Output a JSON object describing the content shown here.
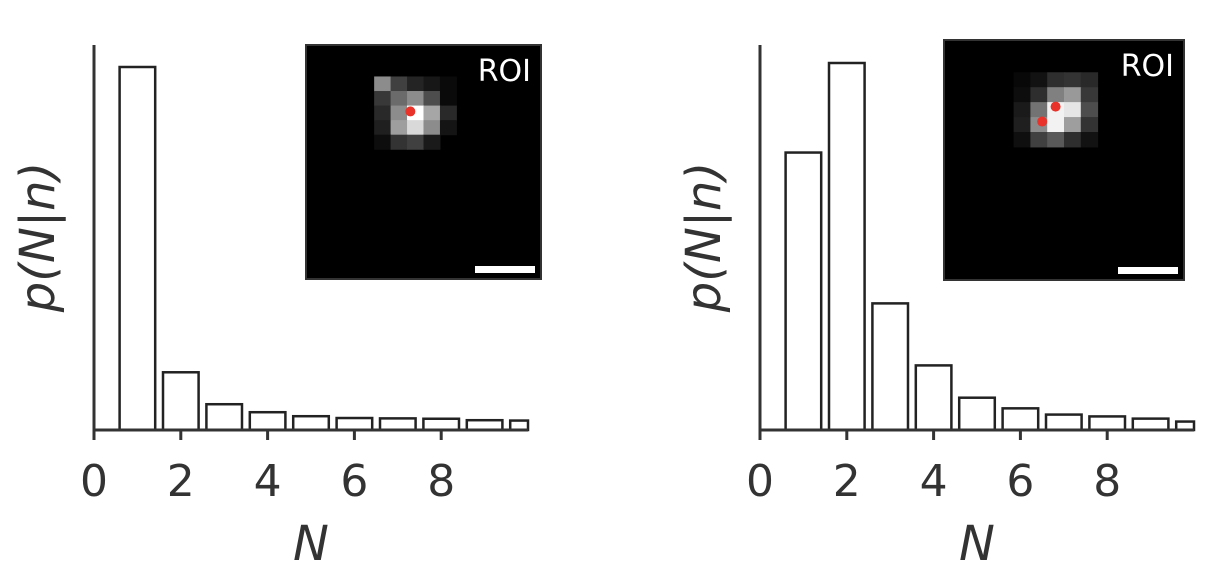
{
  "chart_data": [
    {
      "type": "bar",
      "xlabel": "N",
      "ylabel": "p(N|n)",
      "xlim": [
        0,
        10
      ],
      "xticks": [
        "0",
        "2",
        "4",
        "6",
        "8"
      ],
      "x": [
        1,
        2,
        3,
        4,
        5,
        6,
        7,
        8,
        9,
        10
      ],
      "values": [
        1.0,
        0.159,
        0.071,
        0.049,
        0.038,
        0.033,
        0.032,
        0.031,
        0.027,
        0.026
      ],
      "ylim": [
        0,
        1.05
      ],
      "inset": {
        "label": "ROI",
        "grid": [
          [
            0.0,
            0.0,
            0.0,
            0.0,
            0.0,
            0.0,
            0.0,
            0.0
          ],
          [
            0.0,
            0.0,
            0.0,
            0.0,
            0.0,
            0.0,
            0.0,
            0.0
          ],
          [
            0.0,
            0.55,
            0.25,
            0.14,
            0.09,
            0.04,
            0.0,
            0.0
          ],
          [
            0.0,
            0.22,
            0.42,
            0.55,
            0.3,
            0.04,
            0.0,
            0.0
          ],
          [
            0.0,
            0.16,
            0.55,
            1.0,
            0.65,
            0.16,
            0.0,
            0.0
          ],
          [
            0.0,
            0.12,
            0.62,
            0.85,
            0.55,
            0.08,
            0.0,
            0.0
          ],
          [
            0.0,
            0.05,
            0.2,
            0.25,
            0.1,
            0.0,
            0.0,
            0.0
          ],
          [
            0.0,
            0.0,
            0.0,
            0.0,
            0.0,
            0.0,
            0.0,
            0.0
          ],
          [
            0.0,
            0.0,
            0.0,
            0.0,
            0.0,
            0.0,
            0.0,
            0.0
          ]
        ],
        "dots": [
          [
            3.2,
            4.4
          ]
        ]
      }
    },
    {
      "type": "bar",
      "xlabel": "N",
      "ylabel": "p(N|n)",
      "xlim": [
        0,
        10
      ],
      "xticks": [
        "0",
        "2",
        "4",
        "6",
        "8"
      ],
      "x": [
        1,
        2,
        3,
        4,
        5,
        6,
        7,
        8,
        9,
        10
      ],
      "values": [
        0.756,
        1.0,
        0.345,
        0.176,
        0.088,
        0.059,
        0.042,
        0.037,
        0.031,
        0.023
      ],
      "ylim": [
        0,
        1.05
      ],
      "inset": {
        "label": "ROI",
        "grid": [
          [
            0.0,
            0.0,
            0.0,
            0.0,
            0.0,
            0.0,
            0.0,
            0.0
          ],
          [
            0.0,
            0.0,
            0.0,
            0.0,
            0.0,
            0.0,
            0.0,
            0.0
          ],
          [
            0.0,
            0.03,
            0.07,
            0.18,
            0.2,
            0.16,
            0.0,
            0.0
          ],
          [
            0.0,
            0.05,
            0.18,
            0.5,
            0.6,
            0.22,
            0.0,
            0.0
          ],
          [
            0.0,
            0.1,
            0.45,
            0.95,
            0.9,
            0.3,
            0.0,
            0.0
          ],
          [
            0.0,
            0.12,
            0.55,
            0.95,
            0.62,
            0.2,
            0.0,
            0.0
          ],
          [
            0.0,
            0.06,
            0.25,
            0.35,
            0.18,
            0.07,
            0.0,
            0.0
          ],
          [
            0.0,
            0.0,
            0.0,
            0.0,
            0.0,
            0.0,
            0.0,
            0.0
          ],
          [
            0.0,
            0.0,
            0.0,
            0.0,
            0.0,
            0.0,
            0.0,
            0.0
          ]
        ],
        "dots": [
          [
            3.5,
            4.3
          ],
          [
            2.7,
            5.3
          ]
        ]
      }
    }
  ]
}
